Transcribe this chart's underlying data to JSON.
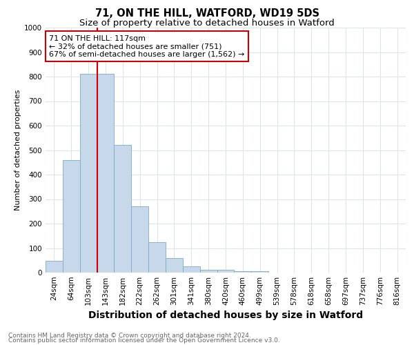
{
  "title": "71, ON THE HILL, WATFORD, WD19 5DS",
  "subtitle": "Size of property relative to detached houses in Watford",
  "xlabel": "Distribution of detached houses by size in Watford",
  "ylabel": "Number of detached properties",
  "categories": [
    "24sqm",
    "64sqm",
    "103sqm",
    "143sqm",
    "182sqm",
    "222sqm",
    "262sqm",
    "301sqm",
    "341sqm",
    "380sqm",
    "420sqm",
    "460sqm",
    "499sqm",
    "539sqm",
    "578sqm",
    "618sqm",
    "658sqm",
    "697sqm",
    "737sqm",
    "776sqm",
    "816sqm"
  ],
  "values": [
    47,
    460,
    810,
    810,
    520,
    270,
    125,
    60,
    25,
    12,
    12,
    7,
    7,
    0,
    0,
    0,
    0,
    0,
    0,
    0,
    0
  ],
  "bar_color": "#c8d8eb",
  "bar_edge_color": "#7aaac8",
  "vline_x_index": 2,
  "vline_color": "#cc0000",
  "annotation_text": "71 ON THE HILL: 117sqm\n← 32% of detached houses are smaller (751)\n67% of semi-detached houses are larger (1,562) →",
  "annotation_box_facecolor": "#ffffff",
  "annotation_box_edgecolor": "#cc0000",
  "ylim": [
    0,
    1000
  ],
  "yticks": [
    0,
    100,
    200,
    300,
    400,
    500,
    600,
    700,
    800,
    900,
    1000
  ],
  "footnote1": "Contains HM Land Registry data © Crown copyright and database right 2024.",
  "footnote2": "Contains public sector information licensed under the Open Government Licence v3.0.",
  "bg_color": "#ffffff",
  "plot_bg_color": "#ffffff",
  "title_fontsize": 10.5,
  "subtitle_fontsize": 9.5,
  "xlabel_fontsize": 10,
  "ylabel_fontsize": 8,
  "tick_fontsize": 7.5,
  "annotation_fontsize": 8,
  "footnote_fontsize": 6.5
}
